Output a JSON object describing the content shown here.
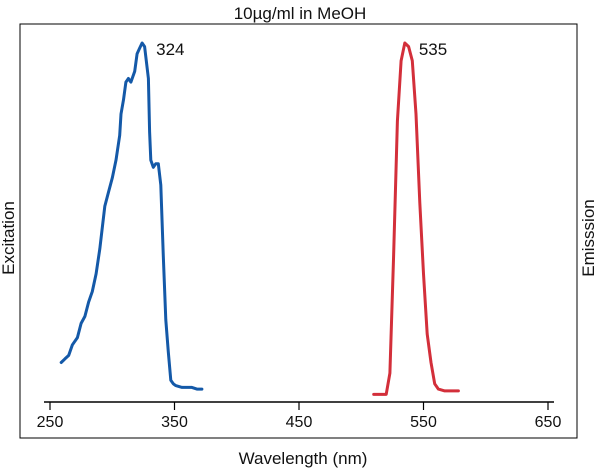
{
  "chart_data": {
    "type": "line",
    "title": "10µg/ml in MeOH",
    "xlabel": "Wavelength (nm)",
    "xlim": [
      250,
      650
    ],
    "xticks": [
      "250",
      "350",
      "450",
      "550",
      "650"
    ],
    "ylim": [
      0,
      1
    ],
    "y_ticks_shown": false,
    "grid": false,
    "series": [
      {
        "name": "Excitation",
        "color": "#1459a8",
        "axis_side": "left",
        "peak_label": "324",
        "points": [
          [
            259,
            0.1
          ],
          [
            262,
            0.11
          ],
          [
            265,
            0.12
          ],
          [
            268,
            0.15
          ],
          [
            272,
            0.17
          ],
          [
            275,
            0.21
          ],
          [
            278,
            0.23
          ],
          [
            281,
            0.27
          ],
          [
            284,
            0.3
          ],
          [
            287,
            0.35
          ],
          [
            290,
            0.42
          ],
          [
            292,
            0.48
          ],
          [
            294,
            0.54
          ],
          [
            297,
            0.58
          ],
          [
            300,
            0.62
          ],
          [
            303,
            0.67
          ],
          [
            306,
            0.74
          ],
          [
            307,
            0.8
          ],
          [
            309,
            0.84
          ],
          [
            311,
            0.89
          ],
          [
            313,
            0.9
          ],
          [
            315,
            0.89
          ],
          [
            318,
            0.92
          ],
          [
            320,
            0.97
          ],
          [
            322,
            0.985
          ],
          [
            324,
            1.0
          ],
          [
            326,
            0.99
          ],
          [
            329,
            0.9
          ],
          [
            330,
            0.75
          ],
          [
            331,
            0.67
          ],
          [
            333,
            0.65
          ],
          [
            335,
            0.66
          ],
          [
            337,
            0.66
          ],
          [
            339,
            0.6
          ],
          [
            341,
            0.4
          ],
          [
            343,
            0.22
          ],
          [
            345,
            0.13
          ],
          [
            347,
            0.05
          ],
          [
            349,
            0.04
          ],
          [
            351,
            0.035
          ],
          [
            356,
            0.03
          ],
          [
            360,
            0.03
          ],
          [
            364,
            0.03
          ],
          [
            368,
            0.025
          ],
          [
            372,
            0.025
          ]
        ]
      },
      {
        "name": "Emisssion",
        "color": "#d32f3a",
        "axis_side": "right",
        "peak_label": "535",
        "points": [
          [
            510,
            0.01
          ],
          [
            515,
            0.01
          ],
          [
            520,
            0.01
          ],
          [
            523,
            0.07
          ],
          [
            526,
            0.4
          ],
          [
            529,
            0.78
          ],
          [
            532,
            0.95
          ],
          [
            535,
            1.0
          ],
          [
            538,
            0.99
          ],
          [
            541,
            0.95
          ],
          [
            544,
            0.8
          ],
          [
            547,
            0.55
          ],
          [
            550,
            0.35
          ],
          [
            553,
            0.18
          ],
          [
            556,
            0.1
          ],
          [
            559,
            0.04
          ],
          [
            562,
            0.025
          ],
          [
            567,
            0.02
          ],
          [
            572,
            0.02
          ],
          [
            578,
            0.02
          ]
        ]
      }
    ]
  }
}
